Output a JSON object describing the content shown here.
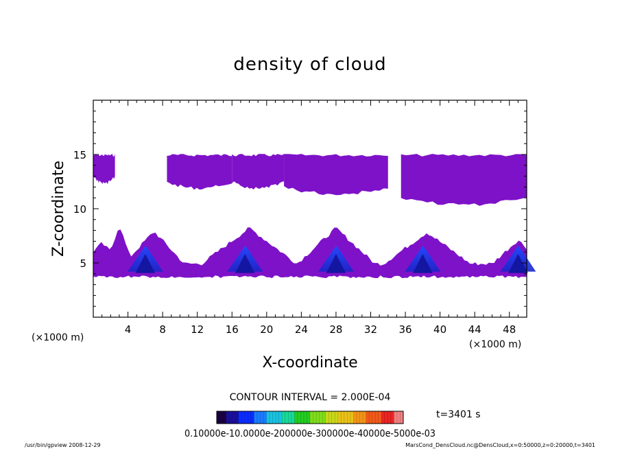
{
  "chart_data": {
    "type": "heatmap",
    "title": "density of cloud",
    "xlabel": "X-coordinate",
    "ylabel": "Z-coordinate",
    "x_unit": "(×1000 m)",
    "y_unit": "(×1000 m)",
    "xlim": [
      0,
      50
    ],
    "ylim": [
      0,
      20
    ],
    "x_ticks": [
      4,
      8,
      12,
      16,
      20,
      24,
      28,
      32,
      36,
      40,
      44,
      48
    ],
    "y_ticks": [
      5,
      10,
      15
    ],
    "contour_interval": "CONTOUR INTERVAL = 2.000E-04",
    "time_label": "t=3401 s",
    "colorbar": {
      "label_text": "0.10000e-10.0000e-200000e-300000e-40000e-5000e-03",
      "min": 0.0,
      "max": 0.0006,
      "colors": [
        "#1a0040",
        "#1b0f9a",
        "#0a2cff",
        "#1a7cff",
        "#19c2e0",
        "#17d99a",
        "#22cc22",
        "#7fdd1a",
        "#c8d81a",
        "#e8c218",
        "#f29418",
        "#f05a1a",
        "#ec2424",
        "#f08080"
      ]
    },
    "levels_shown": "purple = low density (~2e-5 to 2e-4), blue = higher density cores",
    "upper_band_blobs": [
      {
        "x": [
          0,
          2.5
        ],
        "z": [
          12.5,
          15
        ]
      },
      {
        "x": [
          8.5,
          16
        ],
        "z": [
          12,
          15
        ]
      },
      {
        "x": [
          16,
          22
        ],
        "z": [
          12,
          15
        ]
      },
      {
        "x": [
          22,
          34
        ],
        "z": [
          11.5,
          15
        ]
      },
      {
        "x": [
          35.5,
          50
        ],
        "z": [
          10.5,
          15
        ]
      }
    ],
    "lower_band_cores_x": [
      6,
      17.5,
      28,
      38,
      49
    ]
  },
  "footer": {
    "left": "/usr/bin/gpview   2008-12-29",
    "right": "MarsCond_DensCloud.nc@DensCloud,x=0:50000,z=0:20000,t=3401"
  }
}
